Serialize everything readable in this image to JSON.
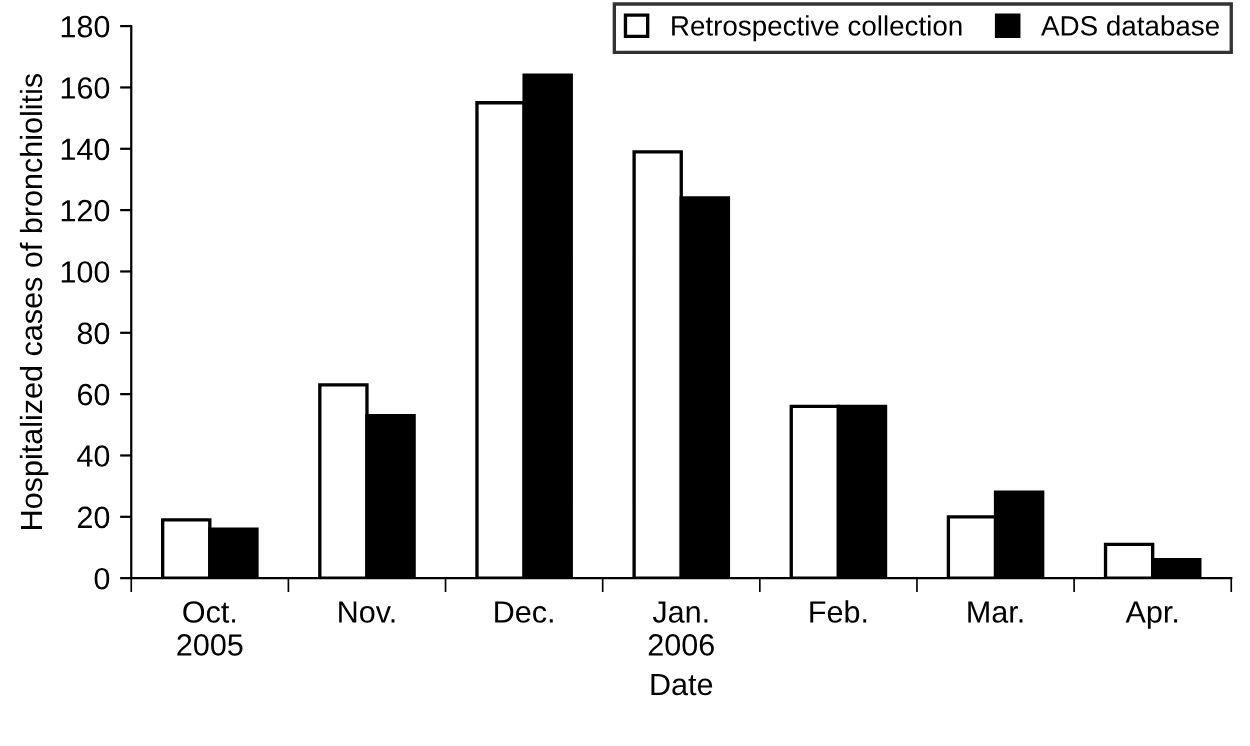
{
  "chart_data": {
    "type": "bar",
    "xlabel": "Date",
    "ylabel": "Hospitalized cases of bronchiolitis",
    "categories": [
      "Oct.\n2005",
      "Nov.",
      "Dec.",
      "Jan.\n2006",
      "Feb.",
      "Mar.",
      "Apr."
    ],
    "series": [
      {
        "name": "Retrospective collection",
        "color": "#ffffff",
        "values": [
          19,
          63,
          155,
          139,
          56,
          20,
          11
        ]
      },
      {
        "name": "ADS database",
        "color": "#000000",
        "values": [
          16,
          53,
          164,
          124,
          56,
          28,
          6
        ]
      }
    ],
    "ylim": [
      0,
      180
    ],
    "yticks": [
      0,
      20,
      40,
      60,
      80,
      100,
      120,
      140,
      160,
      180
    ],
    "grid": false,
    "legend": "top right"
  }
}
